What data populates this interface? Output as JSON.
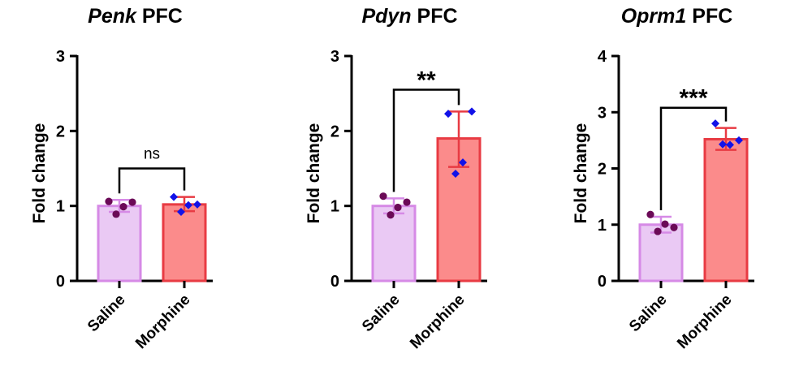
{
  "chart_data": [
    {
      "type": "bar",
      "title_gene": "Penk",
      "title_region": "PFC",
      "ylabel": "Fold change",
      "categories": [
        "Saline",
        "Morphine"
      ],
      "ylim": [
        0,
        3
      ],
      "yticks": [
        0,
        1,
        2,
        3
      ],
      "series": [
        {
          "values": [
            1.0,
            1.02
          ],
          "error": [
            [
              0.92,
              1.08
            ],
            [
              0.93,
              1.12
            ]
          ],
          "points": [
            [
              1.06,
              0.99,
              0.89,
              1.05
            ],
            [
              1.12,
              1.01,
              0.92,
              1.02
            ]
          ]
        }
      ],
      "significance": {
        "label": "ns",
        "y": 1.5
      }
    },
    {
      "type": "bar",
      "title_gene": "Pdyn",
      "title_region": "PFC",
      "ylabel": "Fold change",
      "categories": [
        "Saline",
        "Morphine"
      ],
      "ylim": [
        0,
        3
      ],
      "yticks": [
        0,
        1,
        2,
        3
      ],
      "series": [
        {
          "values": [
            1.0,
            1.9
          ],
          "error": [
            [
              0.9,
              1.1
            ],
            [
              1.52,
              2.26
            ]
          ],
          "points": [
            [
              1.13,
              0.98,
              0.88,
              1.05
            ],
            [
              2.23,
              1.58,
              1.43,
              2.26
            ]
          ]
        }
      ],
      "significance": {
        "label": "**",
        "y": 2.55
      }
    },
    {
      "type": "bar",
      "title_gene": "Oprm1",
      "title_region": "PFC",
      "ylabel": "Fold change",
      "categories": [
        "Saline",
        "Morphine"
      ],
      "ylim": [
        0,
        4
      ],
      "yticks": [
        0,
        1,
        2,
        3,
        4
      ],
      "series": [
        {
          "values": [
            1.0,
            2.52
          ],
          "error": [
            [
              0.86,
              1.14
            ],
            [
              2.33,
              2.72
            ]
          ],
          "points": [
            [
              1.18,
              1.01,
              0.88,
              0.95
            ],
            [
              2.8,
              2.42,
              2.43,
              2.5
            ]
          ]
        }
      ],
      "significance": {
        "label": "***",
        "y": 3.08
      }
    }
  ],
  "colors": {
    "saline_fill": "#eac9f4",
    "saline_edge": "#d68ae6",
    "morphine_fill": "#fb8b8b",
    "morphine_edge": "#e83b43",
    "saline_point": "#6b0a57",
    "morphine_point": "#1212e8",
    "axis": "#000000"
  }
}
